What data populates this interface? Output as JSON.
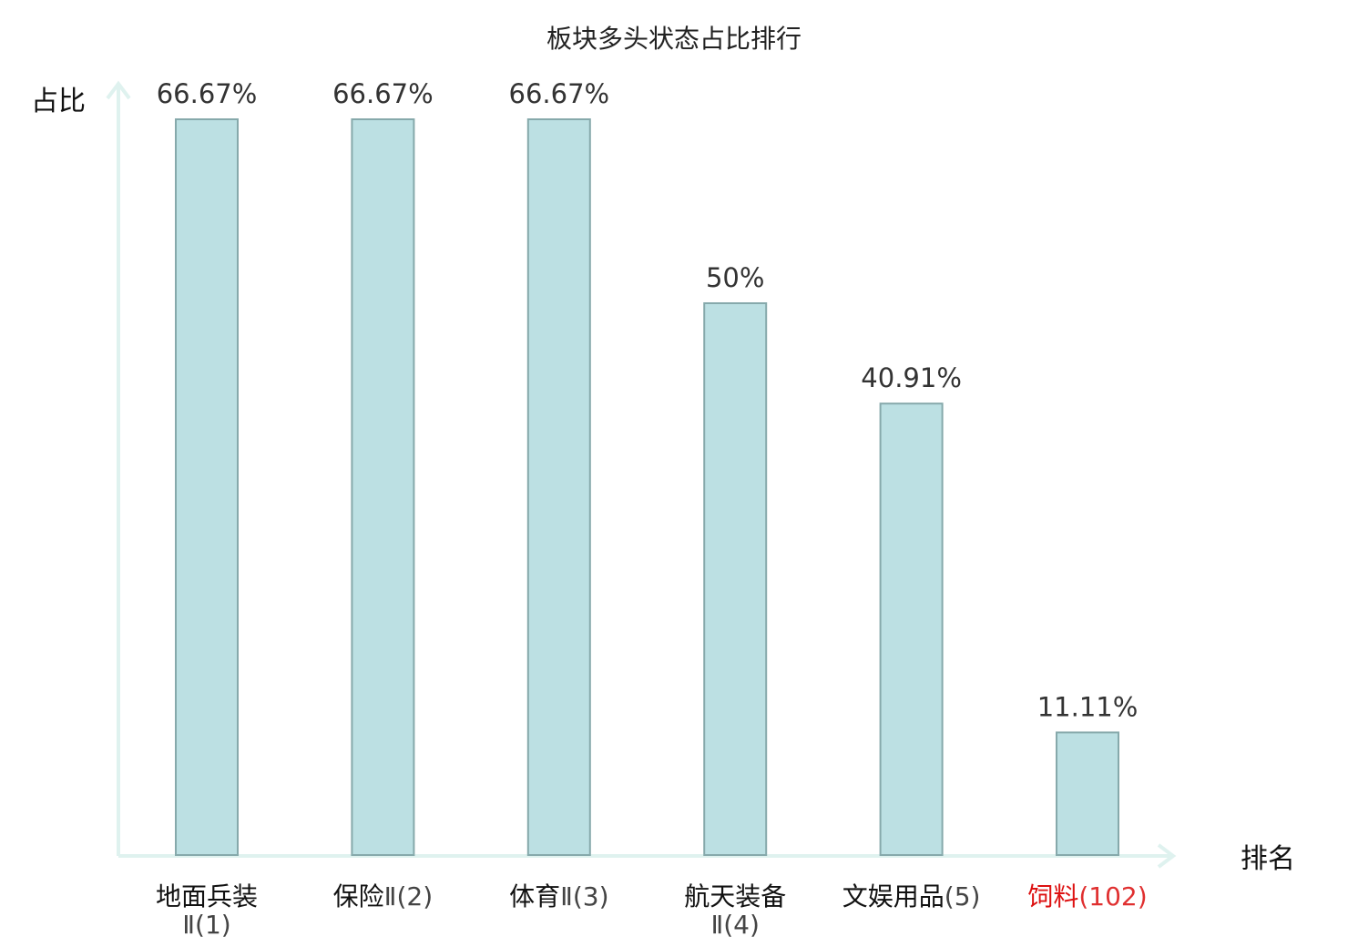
{
  "chart_data": {
    "type": "bar",
    "title": "板块多头状态占比排行",
    "ylabel": "占比",
    "xlabel": "排名",
    "categories": [
      {
        "name": "地面兵装",
        "suffix": "Ⅱ",
        "rank": "(1)",
        "name_color": "#111111",
        "rank_color": "#444444"
      },
      {
        "name": "保险",
        "suffix": "Ⅱ",
        "rank": "(2)",
        "name_color": "#111111",
        "rank_color": "#444444"
      },
      {
        "name": "体育",
        "suffix": "Ⅱ",
        "rank": "(3)",
        "name_color": "#111111",
        "rank_color": "#444444"
      },
      {
        "name": "航天装备",
        "suffix": "Ⅱ",
        "rank": "(4)",
        "name_color": "#111111",
        "rank_color": "#444444"
      },
      {
        "name": "文娱用品",
        "suffix": "",
        "rank": "(5)",
        "name_color": "#111111",
        "rank_color": "#444444"
      },
      {
        "name": "饲料",
        "suffix": "",
        "rank": "(102)",
        "name_color": "#dd1111",
        "rank_color": "#e03030"
      }
    ],
    "values": [
      66.67,
      66.67,
      66.67,
      50,
      40.91,
      11.11
    ],
    "value_labels": [
      "66.67%",
      "66.67%",
      "66.67%",
      "50%",
      "40.91%",
      "11.11%"
    ],
    "ylim": [
      0,
      66.67
    ],
    "grid": false,
    "colors": {
      "bar_fill": "#bce0e3",
      "bar_stroke": "#86a9ab",
      "axis": "#dff2ef"
    }
  }
}
